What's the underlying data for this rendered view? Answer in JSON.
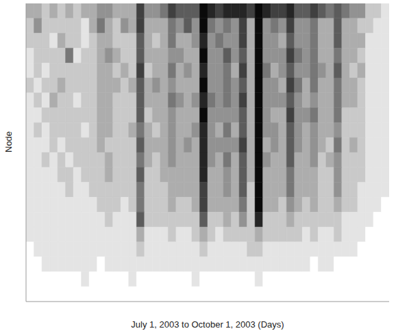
{
  "chart_data": {
    "type": "heatmap",
    "x_label": "July 1, 2003 to October 1, 2003 (Days)",
    "y_label": "Node",
    "tick_labels": false,
    "xlim": [
      0,
      92
    ],
    "ylim": [
      0,
      20
    ],
    "cells": [
      [
        3,
        3,
        2,
        3,
        2,
        3,
        2,
        3,
        3,
        4,
        4,
        3,
        3,
        3,
        7,
        4,
        4,
        5,
        7,
        6,
        6,
        6,
        9,
        8,
        7,
        8,
        8,
        8,
        7,
        9,
        8,
        7,
        7,
        8,
        6,
        6,
        7,
        6,
        5,
        6,
        5,
        4,
        4,
        2,
        2,
        1
      ],
      [
        2,
        4,
        2,
        2,
        2,
        2,
        2,
        1,
        3,
        5,
        3,
        2,
        4,
        3,
        7,
        3,
        3,
        3,
        5,
        4,
        6,
        4,
        9,
        5,
        4,
        5,
        4,
        7,
        3,
        9,
        4,
        5,
        4,
        7,
        4,
        4,
        5,
        3,
        3,
        6,
        3,
        3,
        2,
        2,
        1,
        1
      ],
      [
        2,
        2,
        2,
        1,
        3,
        2,
        2,
        1,
        2,
        3,
        3,
        2,
        2,
        2,
        6,
        3,
        2,
        3,
        5,
        3,
        3,
        4,
        8,
        4,
        5,
        4,
        4,
        7,
        3,
        9,
        4,
        4,
        3,
        6,
        4,
        4,
        5,
        3,
        3,
        6,
        3,
        3,
        3,
        1,
        1,
        1
      ],
      [
        1,
        2,
        2,
        2,
        2,
        5,
        1,
        2,
        2,
        3,
        4,
        3,
        2,
        2,
        6,
        3,
        3,
        3,
        4,
        4,
        3,
        3,
        9,
        4,
        4,
        6,
        4,
        6,
        3,
        9,
        4,
        4,
        4,
        7,
        5,
        4,
        5,
        3,
        3,
        5,
        3,
        3,
        2,
        1,
        1,
        1
      ],
      [
        1,
        2,
        1,
        2,
        2,
        2,
        2,
        2,
        2,
        3,
        3,
        2,
        3,
        2,
        7,
        2,
        3,
        3,
        5,
        3,
        4,
        3,
        8,
        4,
        4,
        5,
        3,
        7,
        3,
        9,
        5,
        3,
        4,
        6,
        4,
        4,
        5,
        4,
        3,
        6,
        3,
        2,
        3,
        1,
        1,
        1
      ],
      [
        2,
        1,
        2,
        2,
        3,
        2,
        2,
        2,
        2,
        3,
        3,
        3,
        2,
        3,
        6,
        3,
        4,
        3,
        4,
        3,
        3,
        3,
        9,
        4,
        4,
        5,
        4,
        6,
        3,
        9,
        4,
        4,
        3,
        7,
        5,
        3,
        5,
        3,
        3,
        5,
        3,
        3,
        2,
        1,
        1,
        1
      ],
      [
        1,
        2,
        1,
        3,
        2,
        2,
        1,
        2,
        2,
        3,
        3,
        2,
        2,
        2,
        6,
        3,
        3,
        3,
        5,
        4,
        3,
        4,
        8,
        5,
        4,
        5,
        4,
        7,
        3,
        9,
        4,
        4,
        4,
        6,
        4,
        3,
        4,
        3,
        3,
        5,
        3,
        3,
        2,
        1,
        1,
        1
      ],
      [
        1,
        1,
        2,
        2,
        2,
        2,
        2,
        2,
        2,
        3,
        3,
        2,
        2,
        2,
        6,
        2,
        3,
        3,
        4,
        3,
        3,
        3,
        9,
        4,
        4,
        4,
        4,
        6,
        3,
        9,
        4,
        3,
        3,
        7,
        4,
        4,
        5,
        3,
        3,
        5,
        2,
        2,
        2,
        1,
        1,
        1
      ],
      [
        1,
        2,
        1,
        2,
        2,
        2,
        2,
        1,
        2,
        3,
        3,
        2,
        2,
        3,
        5,
        3,
        2,
        3,
        4,
        3,
        3,
        4,
        8,
        4,
        3,
        5,
        3,
        6,
        3,
        9,
        4,
        4,
        3,
        6,
        4,
        3,
        4,
        3,
        3,
        4,
        2,
        2,
        2,
        1,
        1,
        1
      ],
      [
        1,
        1,
        1,
        2,
        1,
        2,
        2,
        2,
        2,
        3,
        2,
        2,
        2,
        2,
        6,
        3,
        3,
        3,
        4,
        3,
        4,
        3,
        8,
        4,
        4,
        4,
        4,
        7,
        3,
        9,
        3,
        4,
        3,
        6,
        4,
        3,
        4,
        3,
        2,
        5,
        2,
        3,
        2,
        1,
        1,
        1
      ],
      [
        1,
        1,
        2,
        1,
        2,
        1,
        2,
        2,
        2,
        2,
        3,
        2,
        2,
        2,
        5,
        3,
        2,
        3,
        4,
        3,
        3,
        3,
        8,
        4,
        3,
        5,
        3,
        6,
        3,
        9,
        4,
        3,
        3,
        6,
        3,
        3,
        4,
        2,
        3,
        4,
        2,
        2,
        2,
        1,
        1,
        1
      ],
      [
        1,
        1,
        1,
        1,
        2,
        2,
        1,
        2,
        2,
        2,
        3,
        2,
        2,
        2,
        6,
        2,
        2,
        3,
        3,
        3,
        3,
        3,
        8,
        3,
        3,
        4,
        3,
        6,
        3,
        9,
        3,
        3,
        3,
        5,
        3,
        3,
        3,
        2,
        2,
        4,
        2,
        2,
        2,
        1,
        1,
        1
      ],
      [
        1,
        1,
        1,
        1,
        1,
        2,
        1,
        1,
        2,
        2,
        2,
        2,
        2,
        2,
        5,
        2,
        2,
        2,
        3,
        3,
        3,
        3,
        7,
        3,
        3,
        4,
        3,
        6,
        2,
        9,
        3,
        3,
        3,
        5,
        3,
        3,
        3,
        2,
        2,
        4,
        2,
        2,
        1,
        1,
        1,
        1
      ],
      [
        1,
        1,
        1,
        1,
        1,
        1,
        1,
        1,
        1,
        2,
        2,
        2,
        1,
        2,
        5,
        2,
        2,
        2,
        3,
        2,
        2,
        3,
        7,
        3,
        3,
        3,
        3,
        5,
        2,
        9,
        3,
        3,
        2,
        4,
        3,
        2,
        3,
        2,
        2,
        3,
        2,
        2,
        1,
        1,
        1,
        0
      ],
      [
        1,
        1,
        1,
        1,
        1,
        1,
        1,
        1,
        1,
        1,
        2,
        1,
        1,
        1,
        6,
        2,
        2,
        2,
        2,
        2,
        2,
        2,
        6,
        2,
        2,
        3,
        2,
        4,
        2,
        8,
        2,
        2,
        2,
        3,
        2,
        2,
        2,
        2,
        2,
        2,
        1,
        1,
        1,
        1,
        0,
        0
      ],
      [
        1,
        1,
        1,
        1,
        1,
        1,
        1,
        1,
        1,
        1,
        1,
        1,
        1,
        1,
        3,
        1,
        1,
        1,
        2,
        1,
        1,
        2,
        3,
        2,
        1,
        2,
        2,
        2,
        2,
        3,
        2,
        2,
        2,
        2,
        2,
        1,
        2,
        1,
        1,
        2,
        1,
        1,
        1,
        0,
        0,
        0
      ],
      [
        0,
        1,
        1,
        1,
        1,
        1,
        1,
        1,
        1,
        1,
        1,
        1,
        1,
        1,
        2,
        1,
        1,
        1,
        1,
        1,
        1,
        1,
        2,
        1,
        1,
        1,
        1,
        1,
        2,
        2,
        1,
        1,
        1,
        1,
        1,
        1,
        1,
        1,
        1,
        1,
        1,
        1,
        0,
        0,
        0,
        0
      ],
      [
        0,
        0,
        1,
        1,
        1,
        1,
        1,
        1,
        1,
        0,
        1,
        1,
        1,
        1,
        1,
        1,
        1,
        1,
        1,
        1,
        1,
        1,
        1,
        1,
        1,
        1,
        1,
        1,
        1,
        1,
        1,
        1,
        1,
        1,
        1,
        1,
        0,
        1,
        1,
        0,
        0,
        0,
        0,
        0,
        0,
        0
      ],
      [
        0,
        0,
        0,
        0,
        0,
        0,
        0,
        1,
        0,
        0,
        0,
        0,
        0,
        1,
        0,
        0,
        0,
        0,
        0,
        0,
        0,
        1,
        0,
        0,
        0,
        0,
        0,
        0,
        0,
        1,
        0,
        0,
        0,
        0,
        0,
        0,
        0,
        0,
        0,
        0,
        0,
        0,
        0,
        0,
        0,
        0
      ],
      [
        0,
        0,
        0,
        0,
        0,
        0,
        0,
        0,
        0,
        0,
        0,
        0,
        0,
        0,
        0,
        0,
        0,
        0,
        0,
        0,
        0,
        0,
        0,
        0,
        0,
        0,
        0,
        0,
        0,
        0,
        0,
        0,
        0,
        0,
        0,
        0,
        0,
        0,
        0,
        0,
        0,
        0,
        0,
        0,
        0,
        0
      ]
    ]
  }
}
